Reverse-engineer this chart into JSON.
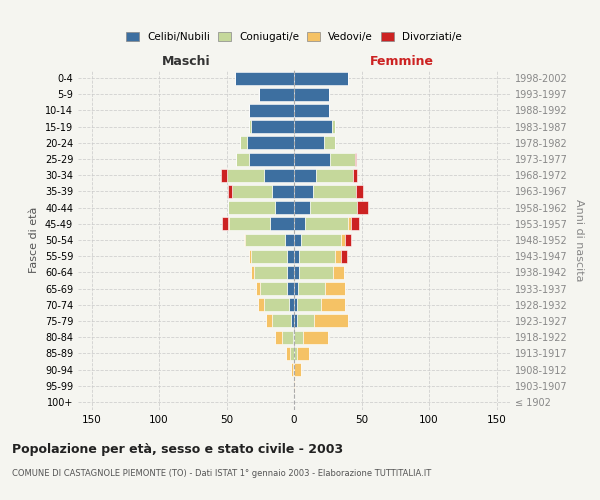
{
  "age_groups": [
    "100+",
    "95-99",
    "90-94",
    "85-89",
    "80-84",
    "75-79",
    "70-74",
    "65-69",
    "60-64",
    "55-59",
    "50-54",
    "45-49",
    "40-44",
    "35-39",
    "30-34",
    "25-29",
    "20-24",
    "15-19",
    "10-14",
    "5-9",
    "0-4"
  ],
  "birth_years": [
    "≤ 1902",
    "1903-1907",
    "1908-1912",
    "1913-1917",
    "1918-1922",
    "1923-1927",
    "1928-1932",
    "1933-1937",
    "1938-1942",
    "1943-1947",
    "1948-1952",
    "1953-1957",
    "1958-1962",
    "1963-1967",
    "1968-1972",
    "1973-1977",
    "1978-1982",
    "1983-1987",
    "1988-1992",
    "1993-1997",
    "1998-2002"
  ],
  "maschi": {
    "celibi": [
      0,
      0,
      0,
      0,
      1,
      2,
      4,
      5,
      5,
      5,
      7,
      18,
      14,
      16,
      22,
      33,
      35,
      32,
      33,
      26,
      44
    ],
    "coniugati": [
      0,
      0,
      1,
      3,
      8,
      14,
      18,
      20,
      25,
      27,
      29,
      30,
      35,
      30,
      28,
      10,
      5,
      1,
      0,
      0,
      0
    ],
    "vedovi": [
      0,
      0,
      1,
      3,
      5,
      5,
      5,
      3,
      2,
      1,
      1,
      1,
      0,
      0,
      0,
      0,
      0,
      0,
      0,
      0,
      0
    ],
    "divorziati": [
      0,
      0,
      0,
      0,
      0,
      0,
      0,
      0,
      0,
      0,
      0,
      4,
      0,
      3,
      4,
      0,
      0,
      0,
      0,
      0,
      0
    ]
  },
  "femmine": {
    "nubili": [
      0,
      0,
      0,
      0,
      0,
      2,
      2,
      3,
      4,
      4,
      5,
      8,
      12,
      14,
      16,
      27,
      22,
      28,
      26,
      26,
      40
    ],
    "coniugate": [
      0,
      0,
      0,
      2,
      7,
      13,
      18,
      20,
      25,
      26,
      30,
      32,
      35,
      32,
      28,
      18,
      8,
      2,
      0,
      0,
      0
    ],
    "vedove": [
      0,
      1,
      5,
      9,
      18,
      25,
      18,
      15,
      8,
      5,
      3,
      2,
      0,
      0,
      0,
      0,
      0,
      0,
      0,
      0,
      0
    ],
    "divorziate": [
      0,
      0,
      0,
      0,
      0,
      0,
      0,
      0,
      0,
      4,
      4,
      6,
      8,
      5,
      3,
      1,
      0,
      0,
      0,
      0,
      0
    ]
  },
  "colors": {
    "celibi": "#3d6fa0",
    "coniugati": "#c5d89b",
    "vedovi": "#f5c265",
    "divorziati": "#cc2222"
  },
  "xlim": 160,
  "title": "Popolazione per età, sesso e stato civile - 2003",
  "subtitle": "COMUNE DI CASTAGNOLE PIEMONTE (TO) - Dati ISTAT 1° gennaio 2003 - Elaborazione TUTTITALIA.IT",
  "ylabel_left": "Fasce di età",
  "ylabel_right": "Anni di nascita",
  "xlabel_maschi": "Maschi",
  "xlabel_femmine": "Femmine",
  "bg_color": "#f5f5f0",
  "grid_color": "#cccccc",
  "bar_height": 0.8
}
